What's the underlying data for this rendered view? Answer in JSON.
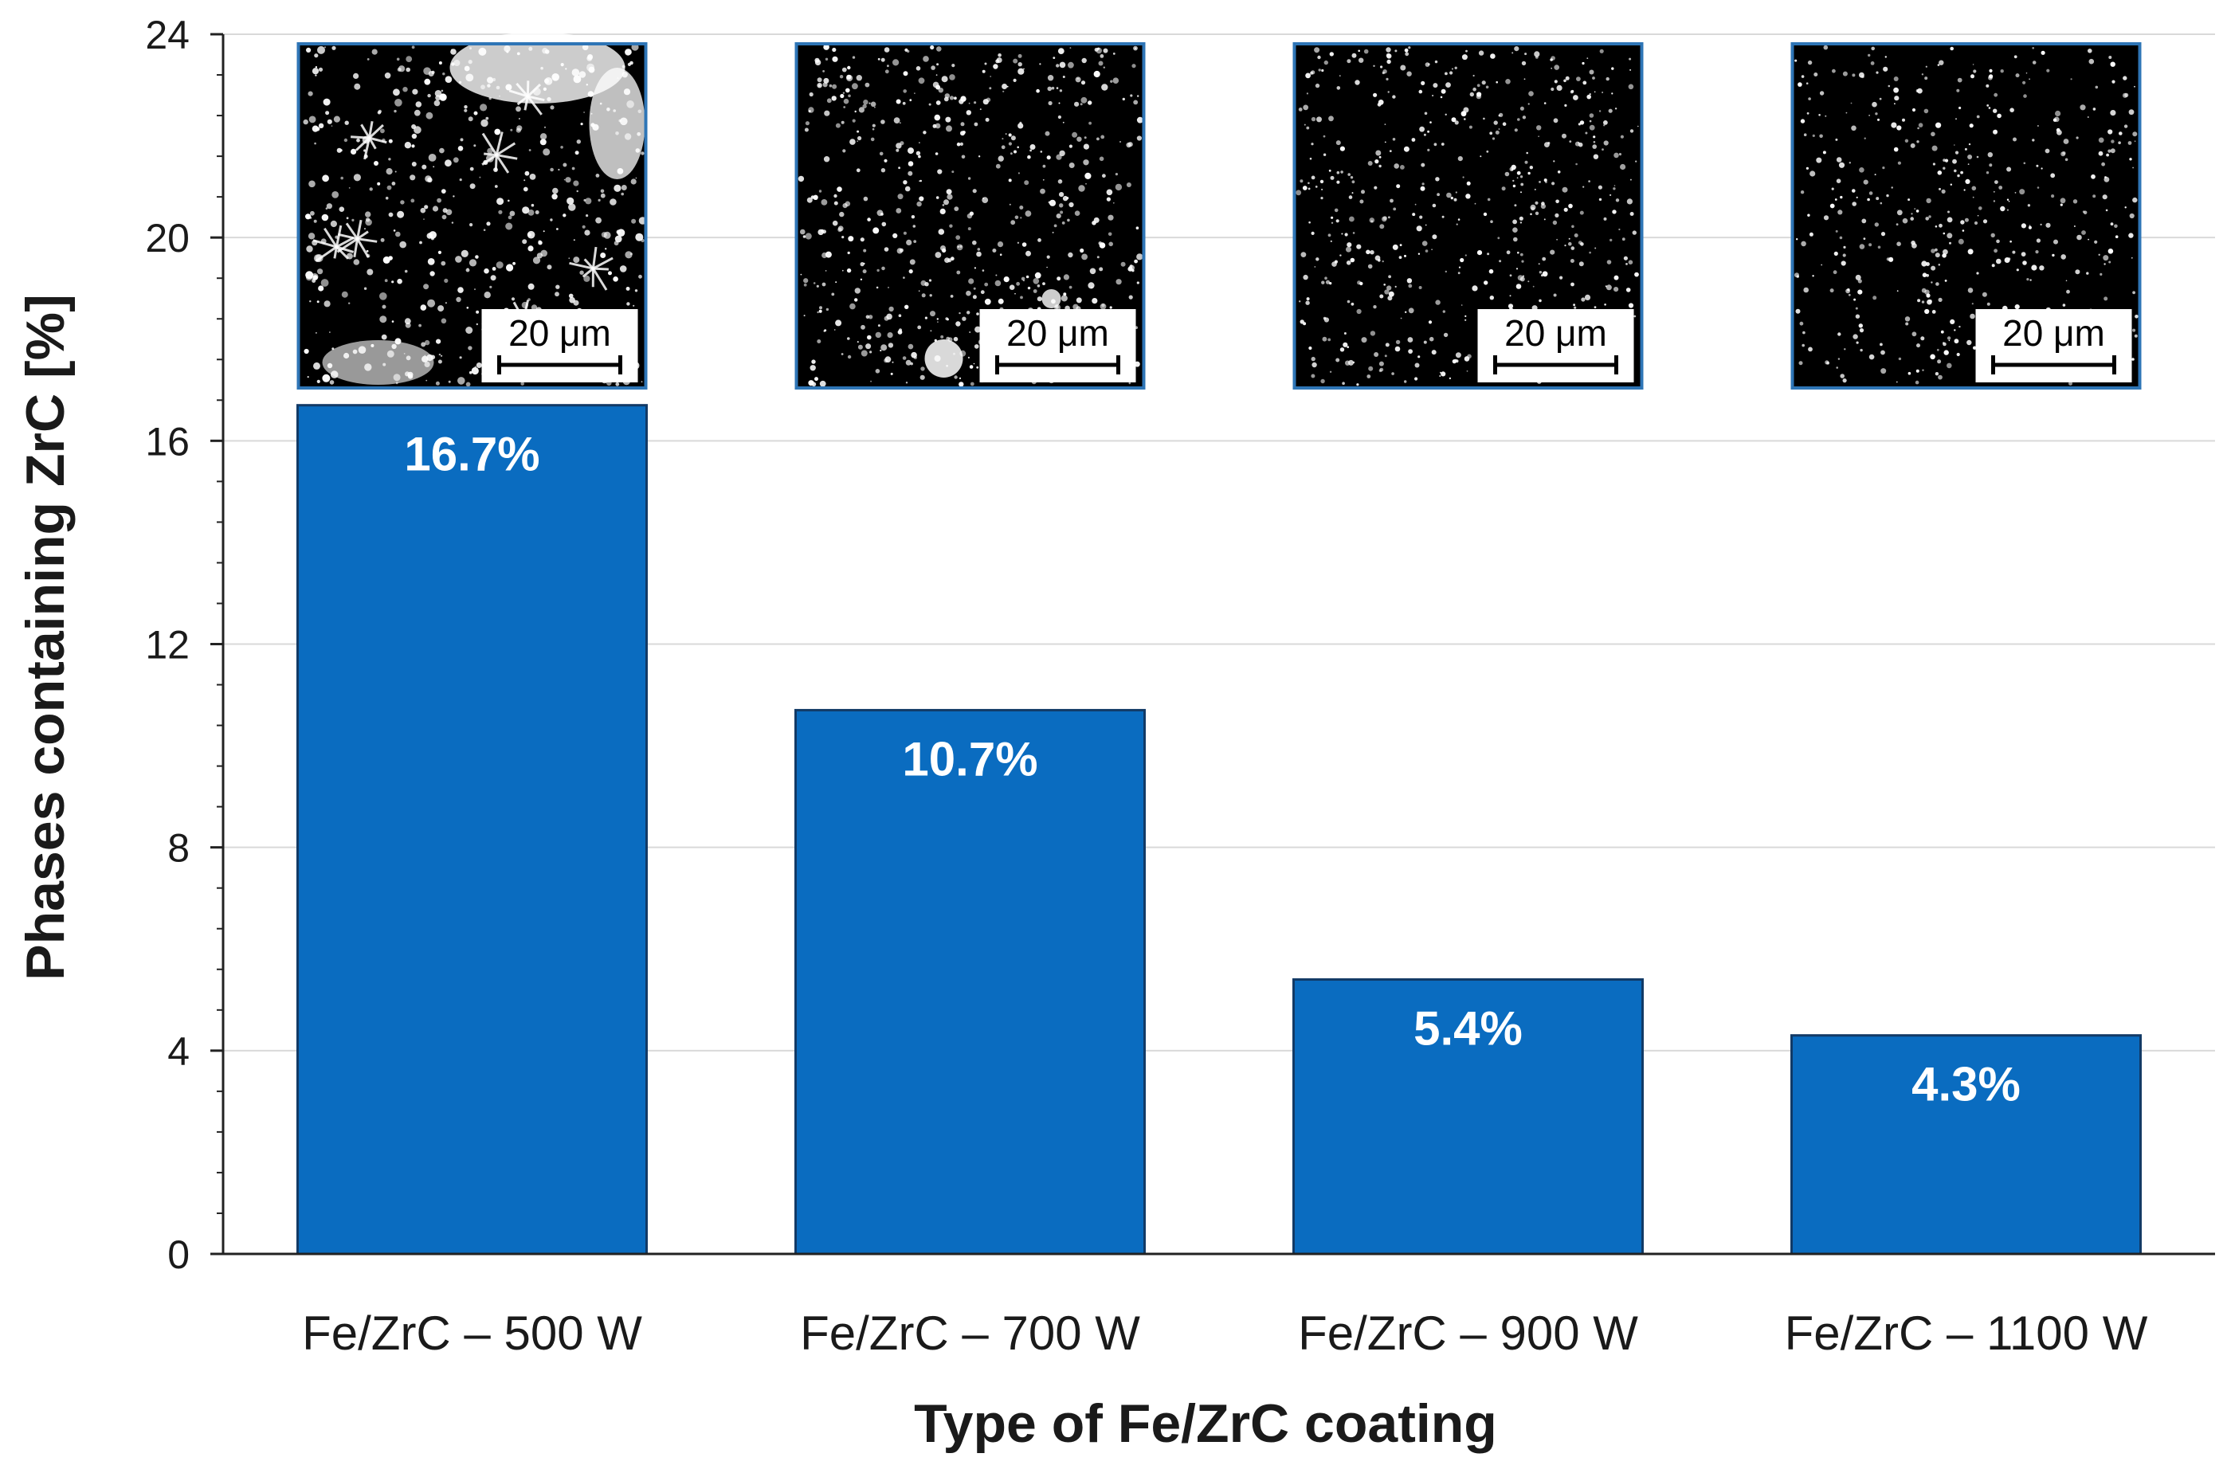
{
  "colors": {
    "bar": "#0a6cc0",
    "bar_edge": "#123a66",
    "grid": "#d9d9d9",
    "axis": "#222222",
    "inset_border": "#2e75b6",
    "micrograph_bg": "#000000",
    "particles": "#ffffff"
  },
  "chart_data": {
    "type": "bar",
    "categories": [
      "Fe/ZrC – 500 W",
      "Fe/ZrC – 700 W",
      "Fe/ZrC – 900 W",
      "Fe/ZrC – 1100 W"
    ],
    "values": [
      16.7,
      10.7,
      5.4,
      4.3
    ],
    "data_labels": [
      "16.7%",
      "10.7%",
      "5.4%",
      "4.3%"
    ],
    "xlabel": "Type of Fe/ZrC coating",
    "ylabel": "Phases containing ZrC [%]",
    "ylim": [
      0,
      24
    ],
    "yticks": [
      0,
      4,
      8,
      12,
      16,
      20,
      24
    ],
    "minor_tick_step": 0.8,
    "grid": true,
    "legend": "none",
    "insets": [
      {
        "name": "micrograph-500w",
        "scale_bar_label": "20 μm",
        "particle_density": "coarse-dendritic",
        "seed": 11
      },
      {
        "name": "micrograph-700w",
        "scale_bar_label": "20 μm",
        "particle_density": "medium",
        "seed": 23
      },
      {
        "name": "micrograph-900w",
        "scale_bar_label": "20 μm",
        "particle_density": "fine",
        "seed": 37
      },
      {
        "name": "micrograph-1100w",
        "scale_bar_label": "20 μm",
        "particle_density": "fine-sparse",
        "seed": 51
      }
    ]
  }
}
